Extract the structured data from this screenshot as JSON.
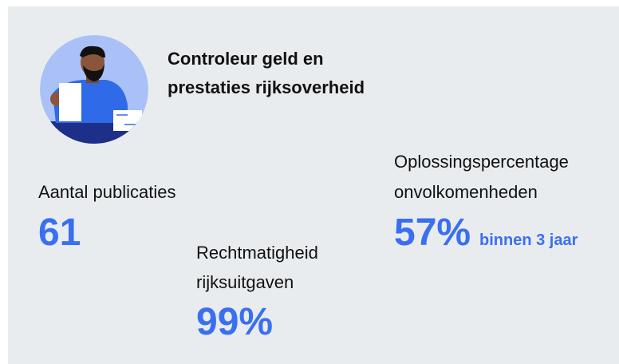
{
  "header": {
    "title_lines": [
      "Controleur geld en",
      "prestaties rijksoverheid"
    ]
  },
  "stats": [
    {
      "label_lines": [
        "Aantal publicaties"
      ],
      "value": "61"
    },
    {
      "label_lines": [
        "Rechtmatigheid",
        "rijksuitgaven"
      ],
      "value": "99%"
    },
    {
      "label_lines": [
        "Oplossingspercentage",
        "onvolkomenheden"
      ],
      "value": "57%",
      "note": "binnen 3 jaar"
    }
  ]
}
